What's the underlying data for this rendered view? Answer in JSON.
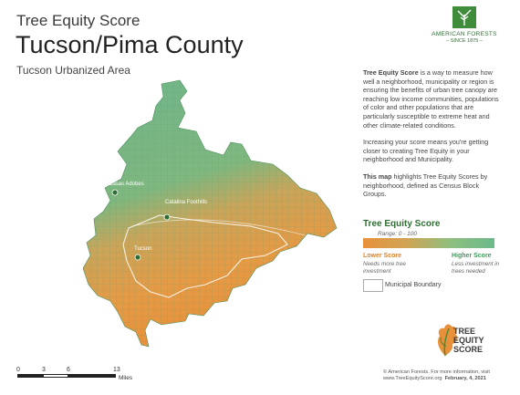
{
  "header": {
    "pretitle": "Tree Equity Score",
    "title": "Tucson/Pima County",
    "subtitle": "Tucson Urbanized Area"
  },
  "org_logo": {
    "name": "AMERICAN FORESTS",
    "since": "– SINCE 1875 –",
    "color": "#3f8c3a"
  },
  "description": {
    "p1_bold": "Tree Equity Score",
    "p1": " is a way to measure how well a neighborhood, municipality or region is ensuring the benefits of urban tree canopy are reaching low income communities, populations of color and other populations that are particularly susceptible to extreme heat and other climate-related conditions.",
    "p2": "Increasing your score means you're getting closer to creating Tree Equity in your neighborhood and Municipality.",
    "p3_bold": "This map",
    "p3": " highlights Tree Equity Scores by neighborhood, defined as Census Block Groups."
  },
  "legend": {
    "title": "Tree Equity Score",
    "range": "Range: 0 - 100",
    "low_label": "Lower Score",
    "low_sub": "Needs more tree investment",
    "high_label": "Higher Score",
    "high_sub": "Less investment in trees needed",
    "boundary": "Municipal Boundary",
    "low_color": "#e8913a",
    "high_color": "#6db98b"
  },
  "map": {
    "places": [
      {
        "name": "Casas Adobes"
      },
      {
        "name": "Catalina Foothills"
      },
      {
        "name": "Tucson"
      }
    ]
  },
  "scale": {
    "ticks": [
      "0",
      "3",
      "6",
      "13"
    ],
    "unit": "Miles"
  },
  "te_logo": {
    "line1": "TREE",
    "line2": "EQUITY",
    "line3": "SCORE"
  },
  "credit": {
    "line1": "© American Forests. For more information, visit",
    "line2": "www.TreeEquityScore.org",
    "date": "February, 4, 2021"
  }
}
